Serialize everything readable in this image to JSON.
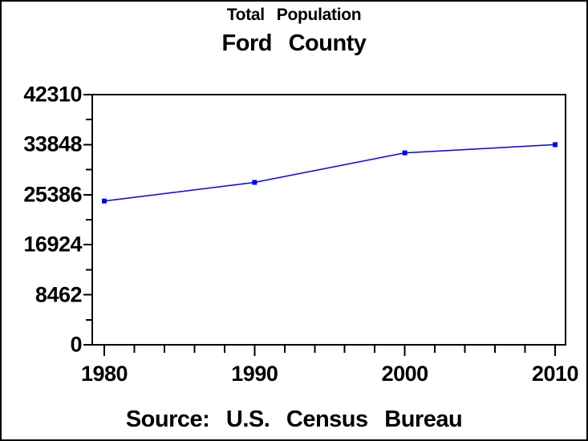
{
  "chart_data": {
    "type": "line",
    "title": "Total Population",
    "subtitle": "Ford County",
    "source": "Source: U.S. Census Bureau",
    "series": [
      {
        "name": "Total Population",
        "x": [
          1980,
          1990,
          2000,
          2010
        ],
        "values": [
          24315,
          27463,
          32458,
          33848
        ]
      }
    ],
    "xlim": [
      1980,
      2010
    ],
    "ylim": [
      0,
      42310
    ],
    "x_major_ticks": [
      1980,
      1990,
      2000,
      2010
    ],
    "x_tick_labels": [
      "1980",
      "1990",
      "2000",
      "2010"
    ],
    "x_minor_ticks": [
      1982,
      1984,
      1986,
      1988,
      1992,
      1994,
      1996,
      1998,
      2002,
      2004,
      2006,
      2008
    ],
    "y_major_ticks": [
      0,
      8462,
      16924,
      25386,
      33848,
      42310
    ],
    "y_tick_labels": [
      "0",
      "8462",
      "16924",
      "25386",
      "33848",
      "42310"
    ],
    "y_minor_ticks": [
      4231,
      12693,
      21155,
      29617,
      38079
    ],
    "grid": false,
    "legend_position": "none",
    "line_color": "#0000ff",
    "marker": "filled-square",
    "axis_color": "#000000",
    "text_color": "#000000",
    "background_color": "#ffffff"
  }
}
